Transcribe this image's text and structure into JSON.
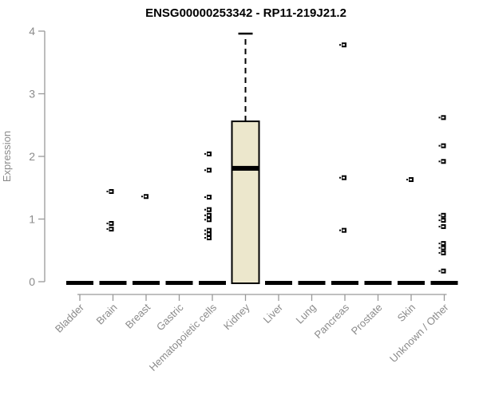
{
  "chart_data": {
    "type": "boxplot",
    "title": "ENSG00000253342 - RP11-219J21.2",
    "xlabel": "",
    "ylabel": "Expression",
    "ylim": [
      0,
      4
    ],
    "yticks": [
      0,
      1,
      2,
      3,
      4
    ],
    "grid": false,
    "legend": "none",
    "categories": [
      "Bladder",
      "Brain",
      "Breast",
      "Gastric",
      "Hematopoietic cells",
      "Kidney",
      "Liver",
      "Lung",
      "Pancreas",
      "Prostate",
      "Skin",
      "Unknown / Other"
    ],
    "series": [
      {
        "category": "Bladder",
        "stats": {
          "whisker_low": 0,
          "q1": 0,
          "median": 0,
          "q3": 0,
          "whisker_high": 0
        },
        "outliers": [],
        "outlier_dx": 0
      },
      {
        "category": "Brain",
        "stats": {
          "whisker_low": 0,
          "q1": 0,
          "median": 0,
          "q3": 0,
          "whisker_high": 0
        },
        "outliers": [
          1.44,
          0.93,
          0.84
        ],
        "outlier_dx": -2
      },
      {
        "category": "Breast",
        "stats": {
          "whisker_low": 0,
          "q1": 0,
          "median": 0,
          "q3": 0,
          "whisker_high": 0
        },
        "outliers": [
          1.36
        ],
        "outlier_dx": 0
      },
      {
        "category": "Gastric",
        "stats": {
          "whisker_low": 0,
          "q1": 0,
          "median": 0,
          "q3": 0,
          "whisker_high": 0
        },
        "outliers": [],
        "outlier_dx": 0
      },
      {
        "category": "Hematopoietic cells",
        "stats": {
          "whisker_low": 0,
          "q1": 0,
          "median": 0,
          "q3": 0,
          "whisker_high": 0
        },
        "outliers": [
          2.04,
          1.78,
          1.35,
          1.15,
          1.06,
          0.99,
          0.82,
          0.76,
          0.7
        ],
        "outlier_dx": -4
      },
      {
        "category": "Kidney",
        "stats": {
          "whisker_low": 0,
          "q1": 0,
          "median": 1.81,
          "q3": 2.56,
          "whisker_high": 3.96
        },
        "outliers": [],
        "outlier_dx": 0
      },
      {
        "category": "Liver",
        "stats": {
          "whisker_low": 0,
          "q1": 0,
          "median": 0,
          "q3": 0,
          "whisker_high": 0
        },
        "outliers": [],
        "outlier_dx": 0
      },
      {
        "category": "Lung",
        "stats": {
          "whisker_low": 0,
          "q1": 0,
          "median": 0,
          "q3": 0,
          "whisker_high": 0
        },
        "outliers": [],
        "outlier_dx": 0
      },
      {
        "category": "Pancreas",
        "stats": {
          "whisker_low": 0,
          "q1": 0,
          "median": 0,
          "q3": 0,
          "whisker_high": 0
        },
        "outliers": [
          3.78,
          1.66,
          0.82
        ],
        "outlier_dx": -1
      },
      {
        "category": "Prostate",
        "stats": {
          "whisker_low": 0,
          "q1": 0,
          "median": 0,
          "q3": 0,
          "whisker_high": 0
        },
        "outliers": [],
        "outlier_dx": 0
      },
      {
        "category": "Skin",
        "stats": {
          "whisker_low": 0,
          "q1": 0,
          "median": 0,
          "q3": 0,
          "whisker_high": 0
        },
        "outliers": [
          1.63
        ],
        "outlier_dx": 0
      },
      {
        "category": "Unknown / Other",
        "stats": {
          "whisker_low": 0,
          "q1": 0,
          "median": 0,
          "q3": 0,
          "whisker_high": 0
        },
        "outliers": [
          2.62,
          2.17,
          1.92,
          1.06,
          0.98,
          0.88,
          0.61,
          0.54,
          0.46,
          0.17
        ],
        "outlier_dx": -1
      }
    ],
    "colors": {
      "box_fill": "#ece7cc",
      "box_border": "#000000",
      "median": "#000000",
      "whisker": "#000000",
      "outlier": "#000000",
      "outlier_center": "#ffffff",
      "axis": "#999999",
      "tick_label": "#8b8b8b",
      "title": "#000000",
      "background": "#ffffff"
    }
  }
}
